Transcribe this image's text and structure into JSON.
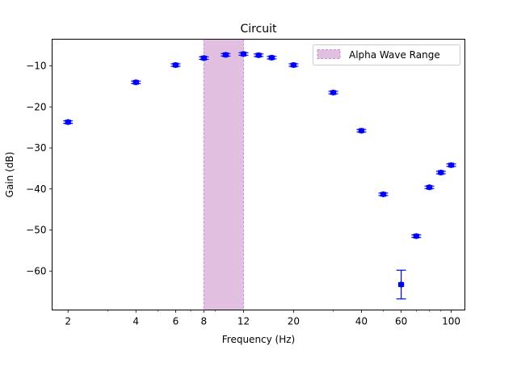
{
  "chart_data": {
    "type": "scatter",
    "title": "Circuit",
    "xlabel": "Frequency (Hz)",
    "ylabel": "Gain (dB)",
    "xscale": "log",
    "xlim": [
      1.7,
      115
    ],
    "ylim": [
      -69.5,
      -3.5
    ],
    "xticks": [
      2,
      4,
      6,
      8,
      12,
      20,
      40,
      60,
      100
    ],
    "xtick_labels": [
      "2",
      "4",
      "6",
      "8",
      "12",
      "20",
      "40",
      "60",
      "100"
    ],
    "yticks": [
      -60,
      -50,
      -40,
      -30,
      -20,
      -10
    ],
    "ytick_labels": [
      "−60",
      "−50",
      "−40",
      "−30",
      "−20",
      "−10"
    ],
    "grid": false,
    "legend": {
      "position": "upper right",
      "entries": [
        "Alpha Wave Range"
      ]
    },
    "band": {
      "label": "Alpha Wave Range",
      "x": [
        8,
        12
      ],
      "color": "#e0bfe0",
      "edge": "#c58fd8"
    },
    "series": [
      {
        "color": "#0000ff",
        "points": [
          {
            "x": 2,
            "y": -23.7,
            "xerr": 0.05,
            "yerr": 0.3
          },
          {
            "x": 4,
            "y": -14.0,
            "xerr": 0.1,
            "yerr": 0.3
          },
          {
            "x": 6,
            "y": -9.8,
            "xerr": 0.15,
            "yerr": 0.3
          },
          {
            "x": 8,
            "y": -8.1,
            "xerr": 0.2,
            "yerr": 0.3
          },
          {
            "x": 10,
            "y": -7.3,
            "xerr": 0.25,
            "yerr": 0.3
          },
          {
            "x": 12,
            "y": -7.1,
            "xerr": 0.3,
            "yerr": 0.3
          },
          {
            "x": 14,
            "y": -7.4,
            "xerr": 0.35,
            "yerr": 0.3
          },
          {
            "x": 16,
            "y": -8.0,
            "xerr": 0.4,
            "yerr": 0.3
          },
          {
            "x": 20,
            "y": -9.8,
            "xerr": 0.5,
            "yerr": 0.3
          },
          {
            "x": 30,
            "y": -16.5,
            "xerr": 0.75,
            "yerr": 0.3
          },
          {
            "x": 40,
            "y": -25.8,
            "xerr": 1.0,
            "yerr": 0.3
          },
          {
            "x": 50,
            "y": -41.3,
            "xerr": 1.25,
            "yerr": 0.3
          },
          {
            "x": 60,
            "y": -63.3,
            "xerr": 1.5,
            "yerr": 3.5
          },
          {
            "x": 70,
            "y": -51.5,
            "xerr": 1.75,
            "yerr": 0.3
          },
          {
            "x": 80,
            "y": -39.6,
            "xerr": 2.0,
            "yerr": 0.3
          },
          {
            "x": 90,
            "y": -36.0,
            "xerr": 2.25,
            "yerr": 0.3
          },
          {
            "x": 100,
            "y": -34.2,
            "xerr": 2.5,
            "yerr": 0.3
          }
        ]
      }
    ]
  }
}
